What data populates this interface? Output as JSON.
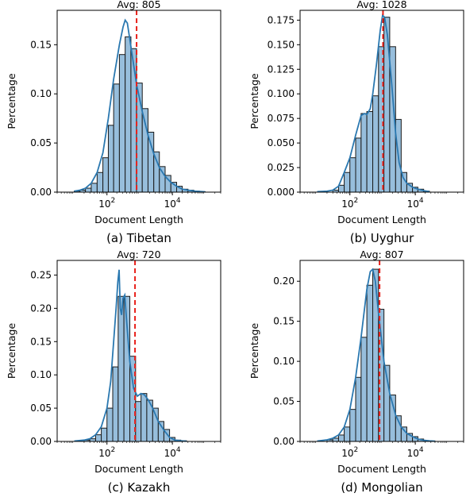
{
  "colors": {
    "bar_fill": "#97bedc",
    "bar_edge": "#1a1a1a",
    "kde": "#2a78b0",
    "avg_line": "#e8201a"
  },
  "chart_data": [
    {
      "type": "bar",
      "title": "Avg: 805",
      "caption": "(a) Tibetan",
      "xlabel": "Document Length",
      "ylabel": "Percentage",
      "x_scale": "log",
      "xlim": [
        3,
        300000
      ],
      "ylim": [
        0,
        0.185
      ],
      "yticks": [
        0,
        0.05,
        0.1,
        0.15
      ],
      "ytick_labels": [
        "0.00",
        "0.05",
        "0.10",
        "0.15"
      ],
      "xticks": [
        100,
        10000
      ],
      "xtick_labels": [
        "10^2",
        "10^4"
      ],
      "avg": 805,
      "bin_edges": [
        10,
        15,
        22,
        33,
        50,
        75,
        110,
        160,
        240,
        360,
        540,
        800,
        1200,
        1800,
        2700,
        4000,
        6000,
        9000,
        13500,
        20000,
        30000,
        45000,
        67000,
        100000
      ],
      "values": [
        0.001,
        0.002,
        0.004,
        0.009,
        0.02,
        0.035,
        0.068,
        0.11,
        0.14,
        0.158,
        0.146,
        0.111,
        0.085,
        0.061,
        0.041,
        0.026,
        0.017,
        0.01,
        0.006,
        0.003,
        0.002,
        0.001,
        0.0005
      ],
      "kde": [
        [
          10,
          0.001
        ],
        [
          15,
          0.002
        ],
        [
          22,
          0.004
        ],
        [
          33,
          0.009
        ],
        [
          50,
          0.02
        ],
        [
          75,
          0.04
        ],
        [
          110,
          0.075
        ],
        [
          160,
          0.115
        ],
        [
          240,
          0.15
        ],
        [
          310,
          0.168
        ],
        [
          360,
          0.175
        ],
        [
          420,
          0.172
        ],
        [
          540,
          0.148
        ],
        [
          800,
          0.11
        ],
        [
          1200,
          0.082
        ],
        [
          1800,
          0.058
        ],
        [
          2700,
          0.039
        ],
        [
          4000,
          0.025
        ],
        [
          6000,
          0.016
        ],
        [
          9000,
          0.01
        ],
        [
          13500,
          0.006
        ],
        [
          20000,
          0.003
        ],
        [
          30000,
          0.002
        ],
        [
          50000,
          0.001
        ],
        [
          100000,
          0.0003
        ]
      ]
    },
    {
      "type": "bar",
      "title": "Avg: 1028",
      "caption": "(b) Uyghur",
      "xlabel": "Document Length",
      "ylabel": "Percentage",
      "x_scale": "log",
      "xlim": [
        3,
        300000
      ],
      "ylim": [
        0,
        0.185
      ],
      "yticks": [
        0,
        0.025,
        0.05,
        0.075,
        0.1,
        0.125,
        0.15,
        0.175
      ],
      "ytick_labels": [
        "0.000",
        "0.025",
        "0.050",
        "0.075",
        "0.100",
        "0.125",
        "0.150",
        "0.175"
      ],
      "xticks": [
        100,
        10000
      ],
      "xtick_labels": [
        "10^2",
        "10^4"
      ],
      "avg": 1028,
      "bin_edges": [
        30,
        45,
        67,
        100,
        150,
        220,
        330,
        500,
        750,
        1100,
        1650,
        2500,
        3700,
        5500,
        8200,
        12000,
        18000,
        27000
      ],
      "values": [
        0.002,
        0.007,
        0.02,
        0.035,
        0.055,
        0.08,
        0.082,
        0.098,
        0.148,
        0.178,
        0.148,
        0.074,
        0.02,
        0.009,
        0.005,
        0.003,
        0.001
      ],
      "kde": [
        [
          10,
          0.0005
        ],
        [
          20,
          0.001
        ],
        [
          30,
          0.002
        ],
        [
          45,
          0.006
        ],
        [
          67,
          0.02
        ],
        [
          100,
          0.035
        ],
        [
          150,
          0.058
        ],
        [
          220,
          0.078
        ],
        [
          280,
          0.08
        ],
        [
          330,
          0.079
        ],
        [
          420,
          0.085
        ],
        [
          500,
          0.1
        ],
        [
          650,
          0.13
        ],
        [
          850,
          0.165
        ],
        [
          1000,
          0.18
        ],
        [
          1150,
          0.178
        ],
        [
          1400,
          0.16
        ],
        [
          1900,
          0.11
        ],
        [
          2500,
          0.06
        ],
        [
          3200,
          0.03
        ],
        [
          4200,
          0.015
        ],
        [
          5500,
          0.009
        ],
        [
          8200,
          0.005
        ],
        [
          12000,
          0.003
        ],
        [
          18000,
          0.0015
        ],
        [
          27000,
          0.0005
        ]
      ]
    },
    {
      "type": "bar",
      "title": "Avg: 720",
      "caption": "(c) Kazakh",
      "xlabel": "Document Length",
      "ylabel": "Percentage",
      "x_scale": "log",
      "xlim": [
        3,
        300000
      ],
      "ylim": [
        0,
        0.272
      ],
      "yticks": [
        0,
        0.05,
        0.1,
        0.15,
        0.2,
        0.25
      ],
      "ytick_labels": [
        "0.00",
        "0.05",
        "0.10",
        "0.15",
        "0.20",
        "0.25"
      ],
      "xticks": [
        100,
        10000
      ],
      "xtick_labels": [
        "10^2",
        "10^4"
      ],
      "avg": 720,
      "bin_edges": [
        20,
        30,
        45,
        67,
        100,
        150,
        220,
        330,
        500,
        750,
        1100,
        1650,
        2500,
        3700,
        5500,
        8200,
        12000,
        18000,
        27000
      ],
      "values": [
        0.002,
        0.004,
        0.01,
        0.02,
        0.05,
        0.112,
        0.218,
        0.218,
        0.128,
        0.06,
        0.072,
        0.062,
        0.05,
        0.03,
        0.018,
        0.006,
        0.002,
        0.001
      ],
      "kde": [
        [
          10,
          0.0005
        ],
        [
          20,
          0.002
        ],
        [
          30,
          0.004
        ],
        [
          45,
          0.01
        ],
        [
          67,
          0.022
        ],
        [
          100,
          0.05
        ],
        [
          130,
          0.09
        ],
        [
          160,
          0.15
        ],
        [
          190,
          0.2
        ],
        [
          215,
          0.24
        ],
        [
          235,
          0.258
        ],
        [
          255,
          0.2
        ],
        [
          280,
          0.19
        ],
        [
          310,
          0.215
        ],
        [
          350,
          0.22
        ],
        [
          400,
          0.18
        ],
        [
          500,
          0.12
        ],
        [
          650,
          0.08
        ],
        [
          850,
          0.068
        ],
        [
          1100,
          0.072
        ],
        [
          1400,
          0.07
        ],
        [
          1800,
          0.063
        ],
        [
          2500,
          0.05
        ],
        [
          3700,
          0.03
        ],
        [
          5500,
          0.017
        ],
        [
          8200,
          0.006
        ],
        [
          12000,
          0.002
        ],
        [
          18000,
          0.001
        ],
        [
          27000,
          0.0003
        ]
      ]
    },
    {
      "type": "bar",
      "title": "Avg: 807",
      "caption": "(d) Mongolian",
      "xlabel": "Document Length",
      "ylabel": "Percentage",
      "x_scale": "log",
      "xlim": [
        3,
        300000
      ],
      "ylim": [
        0,
        0.226
      ],
      "yticks": [
        0,
        0.05,
        0.1,
        0.15,
        0.2
      ],
      "ytick_labels": [
        "0.00",
        "0.05",
        "0.10",
        "0.15",
        "0.20"
      ],
      "xticks": [
        100,
        10000
      ],
      "xtick_labels": [
        "10^2",
        "10^4"
      ],
      "avg": 807,
      "bin_edges": [
        20,
        30,
        45,
        67,
        100,
        150,
        220,
        330,
        500,
        750,
        1100,
        1650,
        2500,
        3700,
        5500,
        8200,
        12000,
        18000,
        27000,
        40000
      ],
      "values": [
        0.002,
        0.004,
        0.008,
        0.018,
        0.04,
        0.08,
        0.13,
        0.195,
        0.215,
        0.165,
        0.095,
        0.058,
        0.032,
        0.018,
        0.01,
        0.006,
        0.003,
        0.001,
        0.0005
      ],
      "kde": [
        [
          10,
          0.0005
        ],
        [
          20,
          0.002
        ],
        [
          30,
          0.004
        ],
        [
          45,
          0.008
        ],
        [
          67,
          0.018
        ],
        [
          100,
          0.04
        ],
        [
          150,
          0.08
        ],
        [
          220,
          0.13
        ],
        [
          330,
          0.19
        ],
        [
          420,
          0.212
        ],
        [
          500,
          0.215
        ],
        [
          600,
          0.2
        ],
        [
          750,
          0.16
        ],
        [
          1100,
          0.1
        ],
        [
          1650,
          0.06
        ],
        [
          2500,
          0.033
        ],
        [
          3700,
          0.018
        ],
        [
          5500,
          0.01
        ],
        [
          8200,
          0.006
        ],
        [
          12000,
          0.003
        ],
        [
          18000,
          0.0015
        ],
        [
          27000,
          0.0007
        ],
        [
          40000,
          0.0003
        ]
      ]
    }
  ]
}
